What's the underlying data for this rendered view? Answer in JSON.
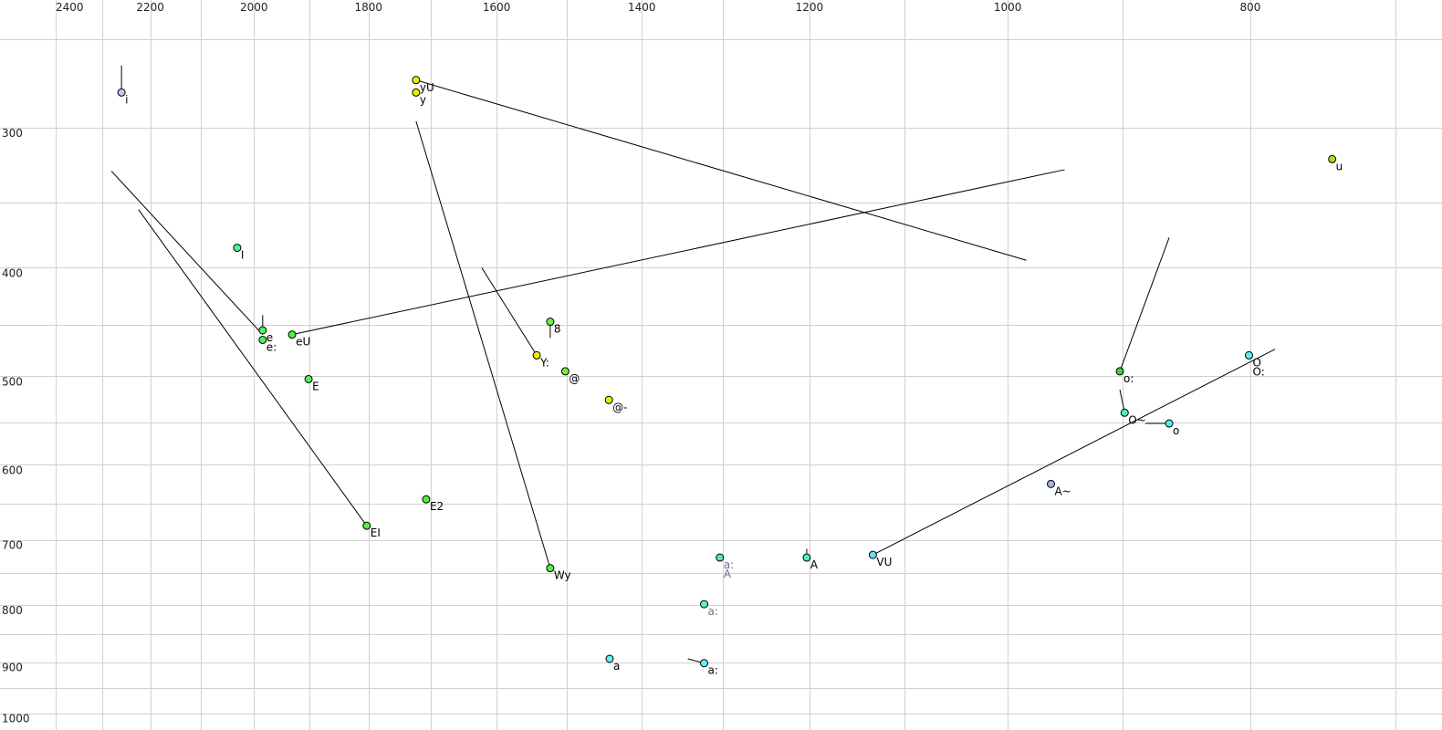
{
  "chart_data": {
    "type": "scatter",
    "xlabel": "",
    "ylabel": "",
    "x_scale": "log",
    "y_scale": "log",
    "x_reversed": true,
    "x_axis_position": "top",
    "xlim": [
      2400,
      700
    ],
    "ylim": [
      250,
      1000
    ],
    "grid": true,
    "x_ticks_labeled": [
      2400,
      2200,
      2000,
      1800,
      1600,
      1400,
      1200,
      1000,
      800
    ],
    "x_gridlines": [
      2400,
      2300,
      2200,
      2100,
      2000,
      1900,
      1800,
      1700,
      1600,
      1500,
      1400,
      1300,
      1200,
      1100,
      1000,
      900,
      800,
      700
    ],
    "y_ticks_labeled": [
      300,
      400,
      500,
      600,
      700,
      800,
      900,
      1000
    ],
    "y_gridlines": [
      250,
      300,
      350,
      400,
      450,
      500,
      550,
      600,
      650,
      700,
      750,
      800,
      850,
      900,
      950,
      1000
    ],
    "points": [
      {
        "label": [
          "i"
        ],
        "x": 2259,
        "y": 279,
        "color": "#c8c0f0",
        "text_color": "#000000"
      },
      {
        "label": [
          "yU"
        ],
        "x": 1723,
        "y": 272,
        "color": "#e8f000",
        "text_color": "#000000"
      },
      {
        "label": [
          "y"
        ],
        "x": 1723,
        "y": 279,
        "color": "#e8f000",
        "text_color": "#000000"
      },
      {
        "label": [
          "u"
        ],
        "x": 742,
        "y": 320,
        "color": "#a0e020",
        "text_color": "#000000"
      },
      {
        "label": [
          "I"
        ],
        "x": 2031,
        "y": 384,
        "color": "#50f0a0",
        "text_color": "#000000"
      },
      {
        "label": [
          "e"
        ],
        "x": 1984,
        "y": 455,
        "color": "#50f060",
        "text_color": "#000000"
      },
      {
        "label": [
          "e:"
        ],
        "x": 1984,
        "y": 464,
        "color": "#50f060",
        "text_color": "#000000"
      },
      {
        "label": [
          "eU"
        ],
        "x": 1931,
        "y": 459,
        "color": "#50f040",
        "text_color": "#000000"
      },
      {
        "label": [
          "E"
        ],
        "x": 1902,
        "y": 503,
        "color": "#50f060",
        "text_color": "#000000"
      },
      {
        "label": [
          "EI"
        ],
        "x": 1803,
        "y": 680,
        "color": "#50f040",
        "text_color": "#000000"
      },
      {
        "label": [
          "E2"
        ],
        "x": 1707,
        "y": 644,
        "color": "#50f040",
        "text_color": "#000000"
      },
      {
        "label": [
          "Wy"
        ],
        "x": 1523,
        "y": 742,
        "color": "#50f040",
        "text_color": "#000000"
      },
      {
        "label": [
          "8"
        ],
        "x": 1523,
        "y": 447,
        "color": "#70f040",
        "text_color": "#000000"
      },
      {
        "label": [
          "Y:"
        ],
        "x": 1542,
        "y": 479,
        "color": "#e8f000",
        "text_color": "#000000"
      },
      {
        "label": [
          "@"
        ],
        "x": 1502,
        "y": 495,
        "color": "#70f040",
        "text_color": "#000000"
      },
      {
        "label": [
          "@-"
        ],
        "x": 1443,
        "y": 525,
        "color": "#e8f000",
        "text_color": "#000000"
      },
      {
        "label": [
          "a"
        ],
        "x": 1442,
        "y": 894,
        "color": "#60f0f0",
        "text_color": "#000000"
      },
      {
        "label": [
          "a:"
        ],
        "x": 1322,
        "y": 902,
        "color": "#60f0f0",
        "text_color": "#000000"
      },
      {
        "label": [
          "a:"
        ],
        "x": 1322,
        "y": 799,
        "color": "#60f0c0",
        "text_color": "#707090"
      },
      {
        "label": [
          "a:",
          "A"
        ],
        "x": 1303,
        "y": 726,
        "color": "#50f0a0",
        "text_color": "#707090"
      },
      {
        "label": [
          "A"
        ],
        "x": 1203,
        "y": 726,
        "color": "#50f0c0",
        "text_color": "#000000"
      },
      {
        "label": [
          "VU"
        ],
        "x": 1132,
        "y": 722,
        "color": "#70d8f8",
        "text_color": "#000000"
      },
      {
        "label": [
          "A~"
        ],
        "x": 961,
        "y": 624,
        "color": "#a0b0f0",
        "text_color": "#000000"
      },
      {
        "label": [
          "o:"
        ],
        "x": 902,
        "y": 495,
        "color": "#40d040",
        "text_color": "#000000"
      },
      {
        "label": [
          "O~"
        ],
        "x": 898,
        "y": 539,
        "color": "#50f0c0",
        "text_color": "#000000"
      },
      {
        "label": [
          "o"
        ],
        "x": 862,
        "y": 551,
        "color": "#50f0e0",
        "text_color": "#000000"
      },
      {
        "label": [
          "O",
          "O:"
        ],
        "x": 801,
        "y": 479,
        "color": "#60f0f0",
        "text_color": "#000000"
      }
    ],
    "trajectories": [
      {
        "from": [
          2259,
          279
        ],
        "to": [
          2259,
          264
        ]
      },
      {
        "from": [
          1723,
          272
        ],
        "to": [
          983,
          394
        ]
      },
      {
        "from": [
          1723,
          296
        ],
        "to": [
          1523,
          742
        ]
      },
      {
        "from": [
          2280,
          328
        ],
        "to": [
          1984,
          459
        ]
      },
      {
        "from": [
          2224,
          355
        ],
        "to": [
          1803,
          680
        ]
      },
      {
        "from": [
          1931,
          459
        ],
        "to": [
          949,
          327
        ]
      },
      {
        "from": [
          1984,
          455
        ],
        "to": [
          1984,
          441
        ]
      },
      {
        "from": [
          1622,
          400
        ],
        "to": [
          1542,
          479
        ]
      },
      {
        "from": [
          1523,
          447
        ],
        "to": [
          1523,
          462
        ]
      },
      {
        "from": [
          1203,
          726
        ],
        "to": [
          1203,
          713
        ]
      },
      {
        "from": [
          1342,
          894
        ],
        "to": [
          1322,
          902
        ]
      },
      {
        "from": [
          1132,
          722
        ],
        "to": [
          782,
          473
        ]
      },
      {
        "from": [
          902,
          495
        ],
        "to": [
          862,
          376
        ]
      },
      {
        "from": [
          898,
          539
        ],
        "to": [
          902,
          514
        ]
      },
      {
        "from": [
          862,
          551
        ],
        "to": [
          881,
          551
        ]
      }
    ]
  }
}
